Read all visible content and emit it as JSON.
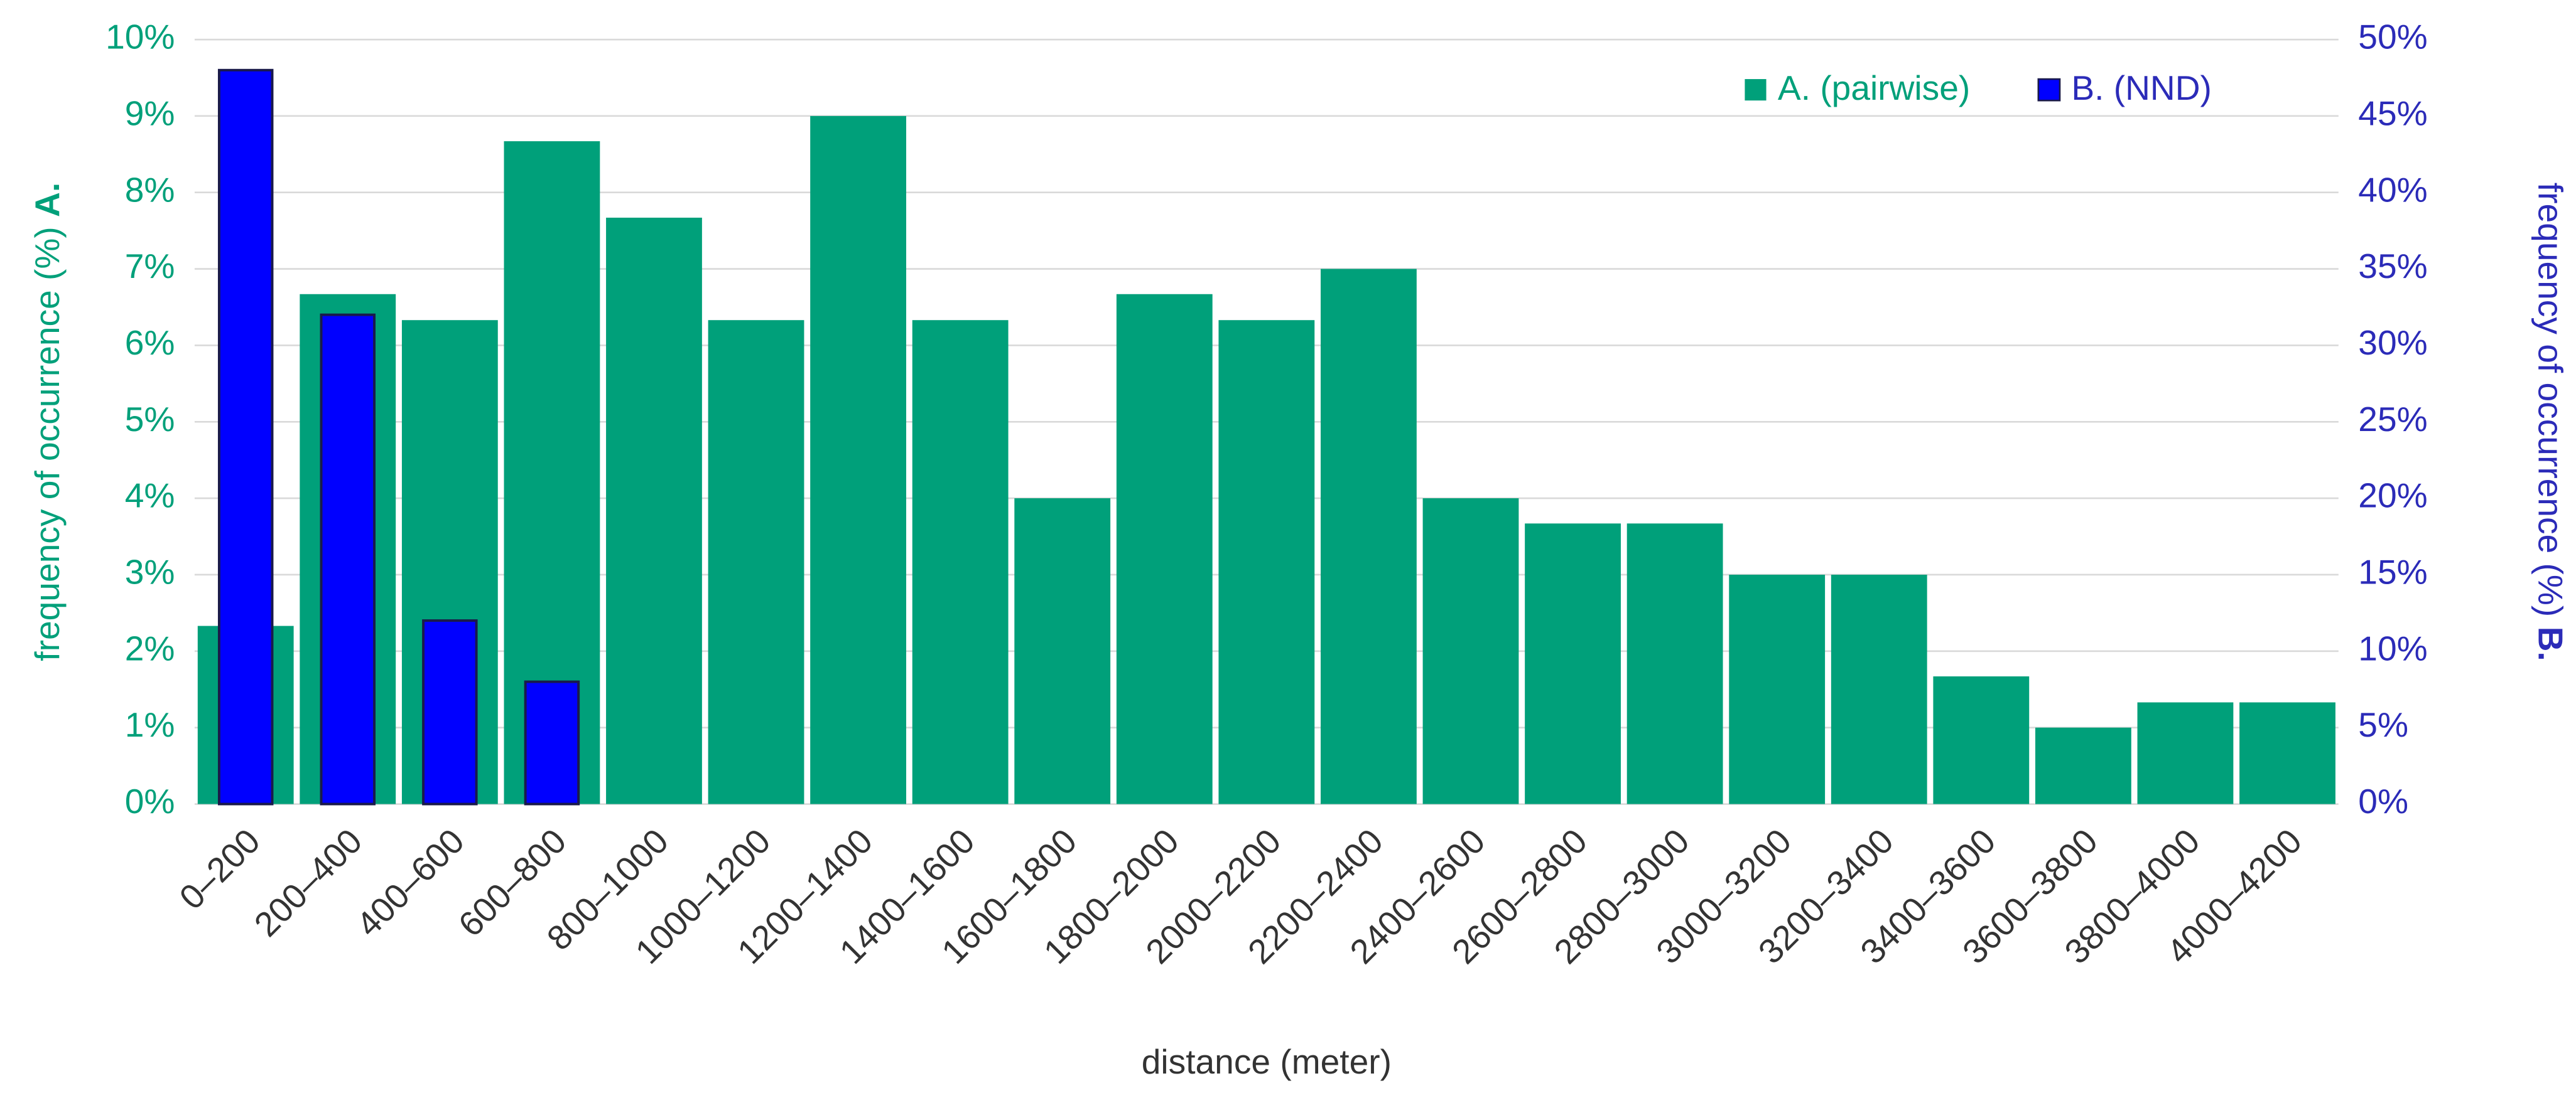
{
  "chart_data": {
    "type": "bar",
    "xlabel": "distance (meter)",
    "ylabel": {
      "text": "frequency of occurrence (%)",
      "tag": "A."
    },
    "y2label": {
      "text": "frequency of occurrence (%)",
      "tag": "B."
    },
    "categories": [
      "0–200",
      "200–400",
      "400–600",
      "600–800",
      "800–1000",
      "1000–1200",
      "1200–1400",
      "1400–1600",
      "1600–1800",
      "1800–2000",
      "2000–2200",
      "2200–2400",
      "2400–2600",
      "2600–2800",
      "2800–3000",
      "3000–3200",
      "3200–3400",
      "3400–3600",
      "3600–3800",
      "3800–4000",
      "4000–4200"
    ],
    "series": [
      {
        "name": "A. (pairwise)",
        "color": "#00a07a",
        "values": [
          2.33,
          6.67,
          6.33,
          8.67,
          7.67,
          6.33,
          9.0,
          6.33,
          4.0,
          6.67,
          6.33,
          7.0,
          4.0,
          3.67,
          3.67,
          3.0,
          3.0,
          1.67,
          1.0,
          1.33,
          1.33
        ]
      },
      {
        "name": "B. (NND)",
        "color": "#0000ff",
        "axis": "y2",
        "values": [
          48,
          32,
          12,
          8,
          null,
          null,
          null,
          null,
          null,
          null,
          null,
          null,
          null,
          null,
          null,
          null,
          null,
          null,
          null,
          null,
          null
        ]
      }
    ],
    "ylim": [
      0,
      10
    ],
    "yticks": [
      {
        "value": 0,
        "label": "0%"
      },
      {
        "value": 1,
        "label": "1%"
      },
      {
        "value": 2,
        "label": "2%"
      },
      {
        "value": 3,
        "label": "3%"
      },
      {
        "value": 4,
        "label": "4%"
      },
      {
        "value": 5,
        "label": "5%"
      },
      {
        "value": 6,
        "label": "6%"
      },
      {
        "value": 7,
        "label": "7%"
      },
      {
        "value": 8,
        "label": "8%"
      },
      {
        "value": 9,
        "label": "9%"
      },
      {
        "value": 10,
        "label": "10%"
      }
    ],
    "y2lim": [
      0,
      50
    ],
    "y2ticks": [
      {
        "value": 0,
        "label": "0%"
      },
      {
        "value": 5,
        "label": "5%"
      },
      {
        "value": 10,
        "label": "10%"
      },
      {
        "value": 15,
        "label": "15%"
      },
      {
        "value": 20,
        "label": "20%"
      },
      {
        "value": 25,
        "label": "25%"
      },
      {
        "value": 30,
        "label": "30%"
      },
      {
        "value": 35,
        "label": "35%"
      },
      {
        "value": 40,
        "label": "40%"
      },
      {
        "value": 45,
        "label": "45%"
      },
      {
        "value": 50,
        "label": "50%"
      }
    ],
    "grid": true,
    "legend": "top-right"
  }
}
